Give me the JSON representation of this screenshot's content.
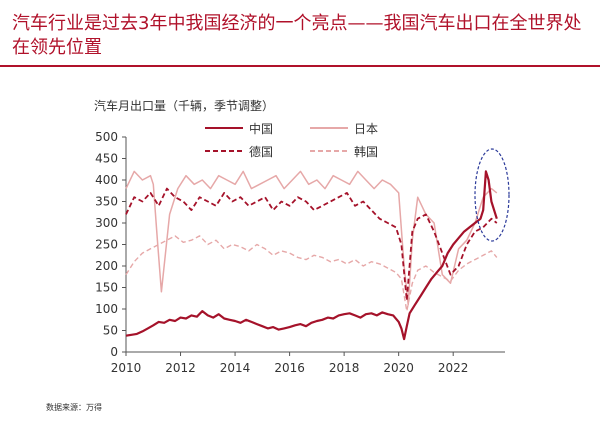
{
  "headline": "汽车行业是过去3年中我国经济的一个亮点——我国汽车出口在全世界处在领先位置",
  "source": "数据来源：万得",
  "colors": {
    "accent": "#b0112a",
    "china": "#a5122a",
    "japan": "#e6a8a8",
    "germany": "#a5122a",
    "korea": "#e6a8a8",
    "highlight": "#2b3a9a"
  },
  "chart_data": {
    "type": "line",
    "title": "汽车月出口量（千辆，季节调整）",
    "xlabel": "",
    "ylabel": "",
    "xlim": [
      2010,
      2023.9
    ],
    "ylim": [
      0,
      500
    ],
    "xticks": [
      "2010",
      "2012",
      "2014",
      "2016",
      "2018",
      "2020",
      "2022"
    ],
    "yticks": [
      "0",
      "50",
      "100",
      "150",
      "200",
      "250",
      "300",
      "350",
      "400",
      "450",
      "500"
    ],
    "grid": false,
    "legend_position": "top-center",
    "series": [
      {
        "name": "中国",
        "style": "solid",
        "color": "#a5122a",
        "width": 2.2,
        "x": [
          2010,
          2010.2,
          2010.4,
          2010.6,
          2010.8,
          2011,
          2011.2,
          2011.4,
          2011.6,
          2011.8,
          2012,
          2012.2,
          2012.4,
          2012.6,
          2012.8,
          2013,
          2013.2,
          2013.4,
          2013.6,
          2013.8,
          2014,
          2014.2,
          2014.4,
          2014.6,
          2014.8,
          2015,
          2015.2,
          2015.4,
          2015.6,
          2015.8,
          2016,
          2016.2,
          2016.4,
          2016.6,
          2016.8,
          2017,
          2017.2,
          2017.4,
          2017.6,
          2017.8,
          2018,
          2018.2,
          2018.4,
          2018.6,
          2018.8,
          2019,
          2019.2,
          2019.4,
          2019.6,
          2019.8,
          2020,
          2020.1,
          2020.2,
          2020.3,
          2020.4,
          2020.6,
          2020.8,
          2021,
          2021.2,
          2021.4,
          2021.6,
          2021.8,
          2022,
          2022.2,
          2022.4,
          2022.6,
          2022.8,
          2023,
          2023.1,
          2023.2,
          2023.3,
          2023.4,
          2023.6
        ],
        "y": [
          38,
          40,
          42,
          48,
          55,
          62,
          70,
          68,
          75,
          72,
          80,
          78,
          85,
          82,
          95,
          85,
          80,
          88,
          78,
          75,
          72,
          68,
          75,
          70,
          65,
          60,
          55,
          58,
          52,
          55,
          58,
          62,
          65,
          60,
          68,
          72,
          75,
          80,
          78,
          85,
          88,
          90,
          85,
          80,
          88,
          90,
          85,
          92,
          88,
          85,
          70,
          55,
          30,
          60,
          90,
          110,
          130,
          150,
          170,
          185,
          200,
          230,
          250,
          265,
          280,
          290,
          300,
          310,
          330,
          420,
          400,
          350,
          310
        ]
      },
      {
        "name": "日本",
        "style": "solid",
        "color": "#e6a8a8",
        "width": 1.5,
        "x": [
          2010,
          2010.3,
          2010.6,
          2010.9,
          2011,
          2011.15,
          2011.3,
          2011.6,
          2011.9,
          2012.2,
          2012.5,
          2012.8,
          2013.1,
          2013.4,
          2013.7,
          2014,
          2014.3,
          2014.6,
          2014.9,
          2015.2,
          2015.5,
          2015.8,
          2016.1,
          2016.4,
          2016.7,
          2017,
          2017.3,
          2017.6,
          2017.9,
          2018.2,
          2018.5,
          2018.8,
          2019.1,
          2019.4,
          2019.7,
          2020,
          2020.2,
          2020.35,
          2020.5,
          2020.7,
          2021,
          2021.3,
          2021.6,
          2021.9,
          2022.2,
          2022.5,
          2022.8,
          2023.1,
          2023.4,
          2023.6
        ],
        "y": [
          380,
          420,
          400,
          410,
          390,
          260,
          140,
          320,
          380,
          410,
          390,
          400,
          380,
          410,
          400,
          390,
          420,
          380,
          390,
          400,
          410,
          380,
          400,
          420,
          390,
          400,
          380,
          410,
          400,
          390,
          420,
          400,
          380,
          400,
          390,
          370,
          200,
          110,
          260,
          360,
          320,
          300,
          180,
          160,
          240,
          260,
          300,
          360,
          380,
          370
        ]
      },
      {
        "name": "德国",
        "style": "dashed",
        "color": "#a5122a",
        "width": 1.8,
        "x": [
          2010,
          2010.3,
          2010.6,
          2010.9,
          2011.2,
          2011.5,
          2011.8,
          2012.1,
          2012.4,
          2012.7,
          2013,
          2013.3,
          2013.6,
          2013.9,
          2014.2,
          2014.5,
          2014.8,
          2015.1,
          2015.4,
          2015.7,
          2016,
          2016.3,
          2016.6,
          2016.9,
          2017.2,
          2017.5,
          2017.8,
          2018.1,
          2018.4,
          2018.7,
          2019,
          2019.3,
          2019.6,
          2019.9,
          2020.1,
          2020.3,
          2020.5,
          2020.7,
          2021,
          2021.3,
          2021.6,
          2021.9,
          2022.2,
          2022.5,
          2022.8,
          2023.1,
          2023.4,
          2023.6
        ],
        "y": [
          320,
          360,
          350,
          370,
          340,
          380,
          360,
          350,
          330,
          360,
          350,
          340,
          370,
          350,
          360,
          340,
          350,
          360,
          330,
          350,
          340,
          360,
          350,
          330,
          340,
          350,
          360,
          370,
          340,
          350,
          330,
          310,
          300,
          290,
          250,
          120,
          280,
          310,
          320,
          280,
          230,
          180,
          200,
          250,
          280,
          290,
          310,
          300
        ]
      },
      {
        "name": "韩国",
        "style": "dashed",
        "color": "#e6a8a8",
        "width": 1.4,
        "x": [
          2010,
          2010.3,
          2010.6,
          2010.9,
          2011.2,
          2011.5,
          2011.8,
          2012.1,
          2012.4,
          2012.7,
          2013,
          2013.3,
          2013.6,
          2013.9,
          2014.2,
          2014.5,
          2014.8,
          2015.1,
          2015.4,
          2015.7,
          2016,
          2016.3,
          2016.6,
          2016.9,
          2017.2,
          2017.5,
          2017.8,
          2018.1,
          2018.4,
          2018.7,
          2019,
          2019.3,
          2019.6,
          2019.9,
          2020.1,
          2020.3,
          2020.5,
          2020.7,
          2021,
          2021.3,
          2021.6,
          2021.9,
          2022.2,
          2022.5,
          2022.8,
          2023.1,
          2023.4,
          2023.6
        ],
        "y": [
          180,
          210,
          230,
          240,
          250,
          260,
          270,
          255,
          260,
          270,
          250,
          260,
          240,
          250,
          245,
          235,
          250,
          240,
          225,
          235,
          230,
          220,
          215,
          225,
          220,
          210,
          215,
          205,
          215,
          200,
          210,
          205,
          195,
          185,
          170,
          95,
          160,
          190,
          200,
          185,
          175,
          165,
          190,
          205,
          215,
          225,
          235,
          220
        ]
      }
    ]
  }
}
